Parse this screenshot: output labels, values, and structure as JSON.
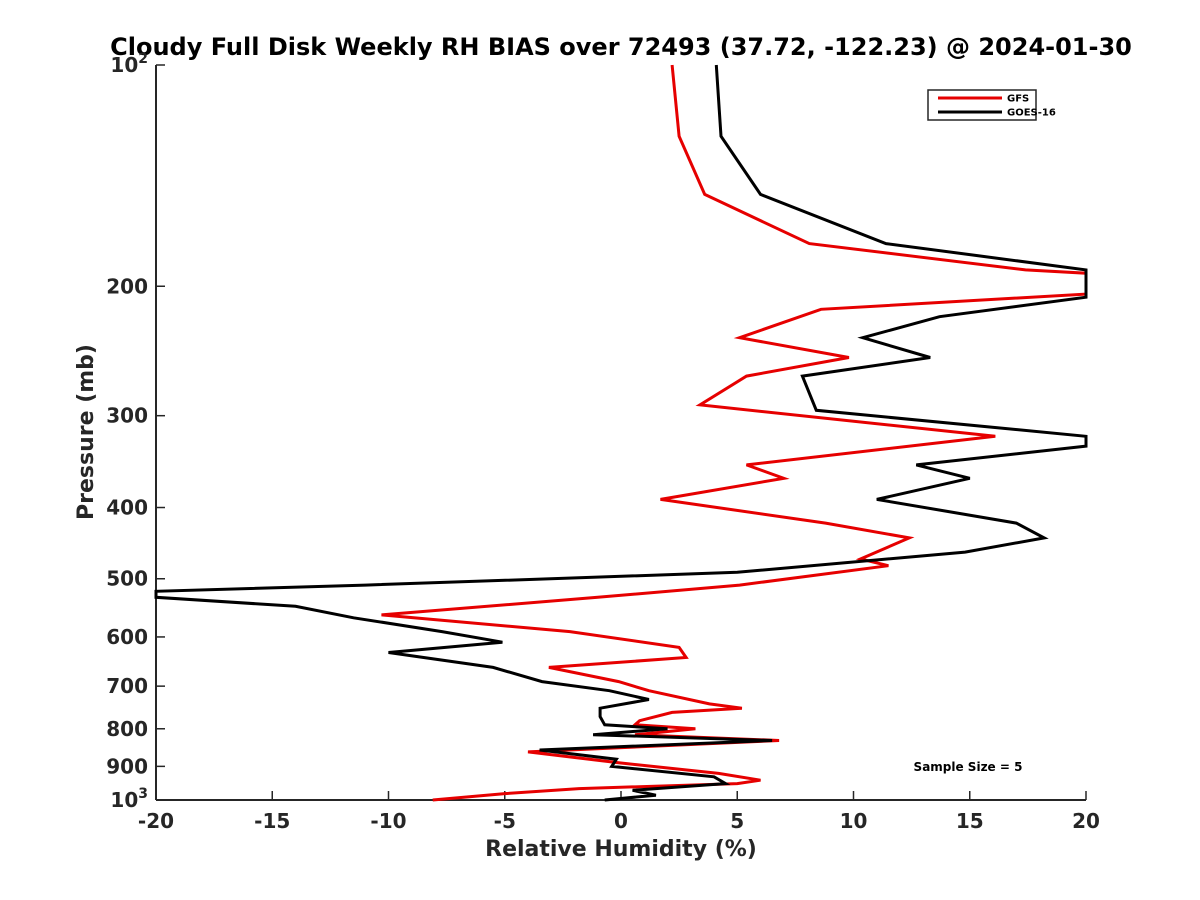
{
  "chart_data": {
    "type": "line",
    "title": "Cloudy Full Disk Weekly RH BIAS over 72493 (37.72, -122.23) @ 2024-01-30",
    "xlabel": "Relative Humidity (%)",
    "ylabel": "Pressure (mb)",
    "xlim": [
      -20,
      20
    ],
    "ylim": [
      100,
      1000
    ],
    "y_scale": "log",
    "y_reversed": true,
    "grid": false,
    "legend_position": "top-right",
    "x_ticks": [
      -20,
      -15,
      -10,
      -5,
      0,
      5,
      10,
      15,
      20
    ],
    "x_tick_labels": [
      "-20",
      "-15",
      "-10",
      "-5",
      "0",
      "5",
      "10",
      "15",
      "20"
    ],
    "y_ticks": [
      100,
      200,
      300,
      400,
      500,
      600,
      700,
      800,
      900,
      1000
    ],
    "y_tick_labels": [
      {
        "base": "10",
        "exp": "2"
      },
      {
        "base": "200",
        "exp": ""
      },
      {
        "base": "300",
        "exp": ""
      },
      {
        "base": "400",
        "exp": ""
      },
      {
        "base": "500",
        "exp": ""
      },
      {
        "base": "600",
        "exp": ""
      },
      {
        "base": "700",
        "exp": ""
      },
      {
        "base": "800",
        "exp": ""
      },
      {
        "base": "900",
        "exp": ""
      },
      {
        "base": "10",
        "exp": "3"
      }
    ],
    "annotation": "Sample Size = 5",
    "series": [
      {
        "name": "GFS",
        "color": "#e60000",
        "points": [
          [
            2.2,
            100
          ],
          [
            2.5,
            125
          ],
          [
            3.6,
            150
          ],
          [
            8.1,
            175
          ],
          [
            17.4,
            190
          ],
          [
            20,
            192
          ],
          [
            20,
            205
          ],
          [
            8.6,
            215
          ],
          [
            5.1,
            235
          ],
          [
            9.8,
            250
          ],
          [
            5.4,
            265
          ],
          [
            3.4,
            290
          ],
          [
            16.1,
            320
          ],
          [
            5.4,
            350
          ],
          [
            7.0,
            365
          ],
          [
            1.7,
            390
          ],
          [
            8.8,
            420
          ],
          [
            12.4,
            440
          ],
          [
            10.3,
            470
          ],
          [
            11.5,
            480
          ],
          [
            5.1,
            510
          ],
          [
            -1.0,
            530
          ],
          [
            -10.3,
            560
          ],
          [
            -2.2,
            590
          ],
          [
            2.5,
            620
          ],
          [
            2.8,
            640
          ],
          [
            -3.1,
            660
          ],
          [
            -0.1,
            690
          ],
          [
            1.2,
            710
          ],
          [
            3.8,
            740
          ],
          [
            5.2,
            750
          ],
          [
            2.2,
            760
          ],
          [
            0.8,
            780
          ],
          [
            0.6,
            790
          ],
          [
            3.2,
            800
          ],
          [
            0.6,
            815
          ],
          [
            6.8,
            830
          ],
          [
            -4.0,
            860
          ],
          [
            -0.1,
            890
          ],
          [
            4.2,
            920
          ],
          [
            6.0,
            940
          ],
          [
            5.0,
            950
          ],
          [
            -1.8,
            965
          ],
          [
            -5.0,
            980
          ],
          [
            -8.1,
            1000
          ]
        ]
      },
      {
        "name": "GOES-16",
        "color": "#000000",
        "points": [
          [
            4.1,
            100
          ],
          [
            4.3,
            125
          ],
          [
            6.0,
            150
          ],
          [
            11.4,
            175
          ],
          [
            20,
            190
          ],
          [
            20,
            207
          ],
          [
            13.7,
            220
          ],
          [
            10.4,
            235
          ],
          [
            13.3,
            250
          ],
          [
            7.8,
            265
          ],
          [
            8.4,
            295
          ],
          [
            20,
            320
          ],
          [
            20,
            330
          ],
          [
            12.7,
            350
          ],
          [
            15.0,
            365
          ],
          [
            11.0,
            390
          ],
          [
            17.0,
            420
          ],
          [
            18.2,
            440
          ],
          [
            14.8,
            460
          ],
          [
            5.0,
            490
          ],
          [
            -11.0,
            510
          ],
          [
            -20,
            520
          ],
          [
            -20,
            530
          ],
          [
            -14.0,
            545
          ],
          [
            -11.5,
            565
          ],
          [
            -7.7,
            590
          ],
          [
            -5.1,
            610
          ],
          [
            -10.0,
            630
          ],
          [
            -5.5,
            660
          ],
          [
            -3.4,
            690
          ],
          [
            -0.5,
            710
          ],
          [
            1.2,
            730
          ],
          [
            -0.9,
            750
          ],
          [
            -0.9,
            770
          ],
          [
            -0.7,
            790
          ],
          [
            2.0,
            800
          ],
          [
            -1.2,
            815
          ],
          [
            6.5,
            830
          ],
          [
            -3.5,
            855
          ],
          [
            -0.2,
            880
          ],
          [
            -0.4,
            900
          ],
          [
            4.0,
            930
          ],
          [
            4.5,
            950
          ],
          [
            0.5,
            970
          ],
          [
            1.5,
            985
          ],
          [
            -0.7,
            1000
          ]
        ]
      }
    ]
  }
}
